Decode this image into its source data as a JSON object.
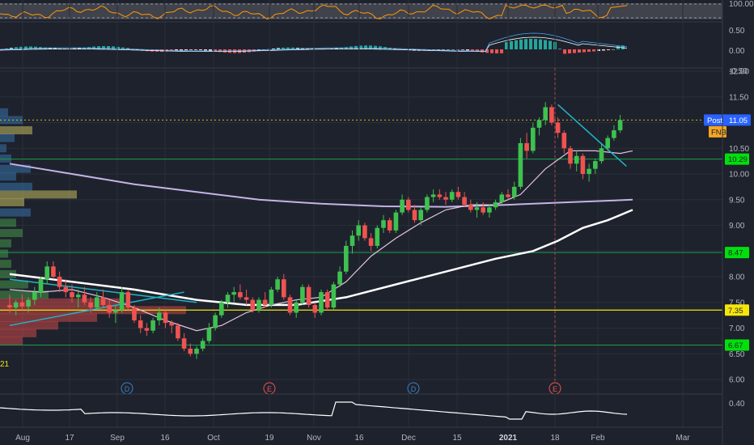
{
  "ticker": "FNB",
  "post_label": "Post",
  "last_price": "11.05",
  "colors": {
    "background": "#1e222d",
    "grid": "#2a2e39",
    "up": "#26a69a",
    "up_fill": "#3ec14f",
    "down": "#ef5350",
    "ma_fast": "#e1c4dd",
    "ma_slow": "#ffffff",
    "ma_200": "#c5b3e6",
    "trendline": "#1fb4c8",
    "hline": "#1a9e4a",
    "yellow": "#f5e50b",
    "rsi": "#ff9800",
    "macd": "#42a5f5",
    "signal": "#ffffff"
  },
  "axis": {
    "price_ticks": [
      "12.00",
      "11.50",
      "11.00",
      "10.50",
      "10.00",
      "9.50",
      "9.00",
      "8.50",
      "8.00",
      "7.50",
      "7.00",
      "6.50",
      "6.00"
    ],
    "rsi_ticks": [
      "100.00"
    ],
    "macd_ticks": [
      "0.50",
      "0.00",
      "-0.50"
    ],
    "bottom_ticks": [
      "0.40"
    ],
    "time_labels": [
      "Aug",
      "17",
      "Sep",
      "16",
      "Oct",
      "19",
      "Nov",
      "16",
      "Dec",
      "15",
      "2021",
      "18",
      "Feb",
      "Mar"
    ]
  },
  "price_tags": [
    {
      "text": "11.05",
      "kind": "post"
    },
    {
      "text": "FNB",
      "kind": "ticker"
    },
    {
      "text": "10.29",
      "kind": "green"
    },
    {
      "text": "8.47",
      "kind": "green"
    },
    {
      "text": "7.35",
      "kind": "yellow"
    },
    {
      "text": "6.67",
      "kind": "green"
    }
  ],
  "events": [
    {
      "letter": "D",
      "kind": "dividend"
    },
    {
      "letter": "E",
      "kind": "earnings"
    },
    {
      "letter": "D",
      "kind": "dividend"
    },
    {
      "letter": "E",
      "kind": "earnings"
    }
  ],
  "left_label": "21",
  "chart_data": {
    "type": "candlestick",
    "symbol": "FNB",
    "ylim": [
      5.7,
      12.3
    ],
    "horizontal_levels": [
      {
        "value": 10.29,
        "color": "green"
      },
      {
        "value": 8.47,
        "color": "green"
      },
      {
        "value": 7.35,
        "color": "yellow"
      },
      {
        "value": 6.67,
        "color": "green"
      }
    ],
    "last_close_line": 11.05,
    "candles": [
      [
        7.45,
        7.65,
        7.3,
        7.4
      ],
      [
        7.4,
        7.55,
        7.25,
        7.5
      ],
      [
        7.5,
        7.65,
        7.35,
        7.42
      ],
      [
        7.42,
        7.6,
        7.3,
        7.55
      ],
      [
        7.55,
        7.8,
        7.45,
        7.7
      ],
      [
        7.7,
        8.0,
        7.6,
        7.95
      ],
      [
        7.95,
        8.3,
        7.85,
        8.2
      ],
      [
        8.2,
        8.3,
        7.95,
        8.0
      ],
      [
        8.0,
        8.1,
        7.7,
        7.8
      ],
      [
        7.8,
        7.95,
        7.6,
        7.7
      ],
      [
        7.7,
        7.85,
        7.5,
        7.6
      ],
      [
        7.6,
        7.75,
        7.4,
        7.65
      ],
      [
        7.65,
        7.8,
        7.45,
        7.5
      ],
      [
        7.5,
        7.6,
        7.3,
        7.4
      ],
      [
        7.4,
        7.7,
        7.35,
        7.6
      ],
      [
        7.6,
        7.75,
        7.4,
        7.45
      ],
      [
        7.45,
        7.55,
        7.2,
        7.3
      ],
      [
        7.3,
        7.45,
        7.1,
        7.35
      ],
      [
        7.35,
        7.8,
        7.3,
        7.7
      ],
      [
        7.7,
        7.75,
        7.35,
        7.4
      ],
      [
        7.4,
        7.45,
        7.1,
        7.15
      ],
      [
        7.15,
        7.25,
        6.9,
        7.0
      ],
      [
        7.0,
        7.1,
        6.85,
        6.95
      ],
      [
        6.95,
        7.2,
        6.9,
        7.15
      ],
      [
        7.15,
        7.4,
        7.05,
        7.3
      ],
      [
        7.3,
        7.35,
        7.0,
        7.1
      ],
      [
        7.1,
        7.15,
        6.9,
        7.05
      ],
      [
        7.05,
        7.1,
        6.75,
        6.8
      ],
      [
        6.8,
        6.9,
        6.55,
        6.6
      ],
      [
        6.6,
        6.7,
        6.45,
        6.5
      ],
      [
        6.5,
        6.65,
        6.4,
        6.6
      ],
      [
        6.6,
        6.8,
        6.55,
        6.75
      ],
      [
        6.75,
        7.1,
        6.7,
        7.0
      ],
      [
        7.0,
        7.3,
        6.95,
        7.25
      ],
      [
        7.25,
        7.55,
        7.2,
        7.5
      ],
      [
        7.5,
        7.7,
        7.4,
        7.65
      ],
      [
        7.65,
        7.8,
        7.5,
        7.7
      ],
      [
        7.7,
        7.85,
        7.55,
        7.6
      ],
      [
        7.6,
        7.75,
        7.45,
        7.55
      ],
      [
        7.55,
        7.6,
        7.3,
        7.35
      ],
      [
        7.35,
        7.6,
        7.3,
        7.55
      ],
      [
        7.55,
        7.7,
        7.4,
        7.45
      ],
      [
        7.45,
        7.8,
        7.4,
        7.75
      ],
      [
        7.75,
        8.0,
        7.7,
        7.95
      ],
      [
        7.95,
        8.05,
        7.55,
        7.6
      ],
      [
        7.6,
        7.65,
        7.25,
        7.3
      ],
      [
        7.3,
        7.55,
        7.2,
        7.5
      ],
      [
        7.5,
        7.85,
        7.45,
        7.8
      ],
      [
        7.8,
        7.85,
        7.4,
        7.45
      ],
      [
        7.45,
        7.5,
        7.2,
        7.3
      ],
      [
        7.3,
        7.75,
        7.25,
        7.7
      ],
      [
        7.7,
        7.75,
        7.35,
        7.4
      ],
      [
        7.4,
        7.9,
        7.35,
        7.85
      ],
      [
        7.85,
        8.2,
        7.8,
        8.1
      ],
      [
        8.1,
        8.7,
        8.05,
        8.6
      ],
      [
        8.6,
        8.9,
        8.45,
        8.8
      ],
      [
        8.8,
        9.1,
        8.7,
        9.0
      ],
      [
        9.0,
        9.05,
        8.7,
        8.75
      ],
      [
        8.75,
        8.85,
        8.5,
        8.6
      ],
      [
        8.6,
        9.0,
        8.55,
        8.95
      ],
      [
        8.95,
        9.2,
        8.85,
        9.1
      ],
      [
        9.1,
        9.15,
        8.85,
        8.9
      ],
      [
        8.9,
        9.3,
        8.85,
        9.25
      ],
      [
        9.25,
        9.6,
        9.2,
        9.5
      ],
      [
        9.5,
        9.55,
        9.25,
        9.3
      ],
      [
        9.3,
        9.4,
        9.05,
        9.1
      ],
      [
        9.1,
        9.35,
        9.0,
        9.3
      ],
      [
        9.3,
        9.6,
        9.25,
        9.55
      ],
      [
        9.55,
        9.7,
        9.45,
        9.6
      ],
      [
        9.6,
        9.7,
        9.5,
        9.55
      ],
      [
        9.55,
        9.65,
        9.4,
        9.5
      ],
      [
        9.5,
        9.7,
        9.45,
        9.65
      ],
      [
        9.65,
        9.75,
        9.5,
        9.55
      ],
      [
        9.55,
        9.65,
        9.35,
        9.4
      ],
      [
        9.4,
        9.5,
        9.25,
        9.3
      ],
      [
        9.3,
        9.45,
        9.15,
        9.35
      ],
      [
        9.35,
        9.45,
        9.2,
        9.25
      ],
      [
        9.25,
        9.4,
        9.15,
        9.35
      ],
      [
        9.35,
        9.5,
        9.3,
        9.45
      ],
      [
        9.45,
        9.65,
        9.4,
        9.6
      ],
      [
        9.6,
        9.7,
        9.5,
        9.55
      ],
      [
        9.55,
        9.85,
        9.5,
        9.75
      ],
      [
        9.75,
        10.7,
        9.7,
        10.6
      ],
      [
        10.6,
        10.8,
        10.3,
        10.45
      ],
      [
        10.45,
        11.0,
        10.4,
        10.9
      ],
      [
        10.9,
        11.1,
        10.75,
        11.05
      ],
      [
        11.05,
        11.4,
        10.95,
        11.3
      ],
      [
        11.3,
        11.35,
        10.95,
        11.0
      ],
      [
        11.0,
        11.1,
        10.7,
        10.8
      ],
      [
        10.8,
        10.85,
        10.4,
        10.5
      ],
      [
        10.5,
        10.55,
        10.1,
        10.2
      ],
      [
        10.2,
        10.45,
        10.05,
        10.35
      ],
      [
        10.35,
        10.4,
        9.9,
        10.0
      ],
      [
        10.0,
        10.2,
        9.85,
        10.1
      ],
      [
        10.1,
        10.3,
        10.0,
        10.25
      ],
      [
        10.25,
        10.6,
        10.2,
        10.5
      ],
      [
        10.5,
        10.75,
        10.45,
        10.7
      ],
      [
        10.7,
        10.95,
        10.65,
        10.85
      ],
      [
        10.85,
        11.15,
        10.8,
        11.05
      ]
    ],
    "ma_fast": [
      [
        0,
        7.75
      ],
      [
        5,
        7.7
      ],
      [
        10,
        7.75
      ],
      [
        15,
        7.6
      ],
      [
        20,
        7.4
      ],
      [
        25,
        7.15
      ],
      [
        30,
        6.95
      ],
      [
        34,
        7.05
      ],
      [
        38,
        7.3
      ],
      [
        42,
        7.45
      ],
      [
        46,
        7.55
      ],
      [
        50,
        7.6
      ],
      [
        54,
        7.9
      ],
      [
        58,
        8.4
      ],
      [
        62,
        8.75
      ],
      [
        66,
        9.05
      ],
      [
        70,
        9.3
      ],
      [
        74,
        9.4
      ],
      [
        78,
        9.4
      ],
      [
        82,
        9.6
      ],
      [
        86,
        10.1
      ],
      [
        90,
        10.45
      ],
      [
        94,
        10.45
      ],
      [
        98,
        10.4
      ],
      [
        100,
        10.45
      ]
    ],
    "ma_slow": [
      [
        0,
        8.05
      ],
      [
        10,
        7.9
      ],
      [
        20,
        7.75
      ],
      [
        30,
        7.55
      ],
      [
        38,
        7.45
      ],
      [
        46,
        7.45
      ],
      [
        54,
        7.6
      ],
      [
        62,
        7.85
      ],
      [
        70,
        8.1
      ],
      [
        78,
        8.35
      ],
      [
        84,
        8.5
      ],
      [
        88,
        8.7
      ],
      [
        92,
        8.95
      ],
      [
        96,
        9.1
      ],
      [
        100,
        9.3
      ]
    ],
    "ma_200": [
      [
        0,
        10.2
      ],
      [
        10,
        10.0
      ],
      [
        20,
        9.8
      ],
      [
        30,
        9.65
      ],
      [
        40,
        9.5
      ],
      [
        50,
        9.42
      ],
      [
        60,
        9.37
      ],
      [
        70,
        9.36
      ],
      [
        80,
        9.4
      ],
      [
        90,
        9.45
      ],
      [
        100,
        9.5
      ]
    ],
    "trendlines": [
      {
        "from": [
          0,
          7.05
        ],
        "to": [
          28,
          7.7
        ]
      },
      {
        "from": [
          0,
          7.95
        ],
        "to": [
          30,
          7.5
        ]
      },
      {
        "from": [
          88,
          11.35
        ],
        "to": [
          99,
          10.15
        ]
      }
    ]
  }
}
